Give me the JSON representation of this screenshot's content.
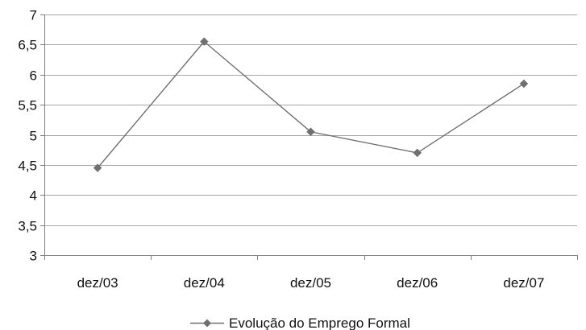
{
  "chart_data": {
    "type": "line",
    "title": "",
    "xlabel": "",
    "ylabel": "",
    "categories": [
      "dez/03",
      "dez/04",
      "dez/05",
      "dez/06",
      "dez/07"
    ],
    "series": [
      {
        "name": "Evolução do Emprego Formal",
        "values": [
          4.45,
          6.55,
          5.05,
          4.7,
          5.85
        ],
        "color": "#707070",
        "marker": "diamond"
      }
    ],
    "ylim": [
      3,
      7
    ],
    "y_ticks": [
      3,
      3.5,
      4,
      4.5,
      5,
      5.5,
      6,
      6.5,
      7
    ],
    "y_tick_labels": [
      "3",
      "3,5",
      "4",
      "4,5",
      "5",
      "5,5",
      "6",
      "6,5",
      "7"
    ],
    "grid": true,
    "gridline_color": "#a6a6a6",
    "axis_color": "#7f7f7f",
    "legend_position": "bottom"
  }
}
